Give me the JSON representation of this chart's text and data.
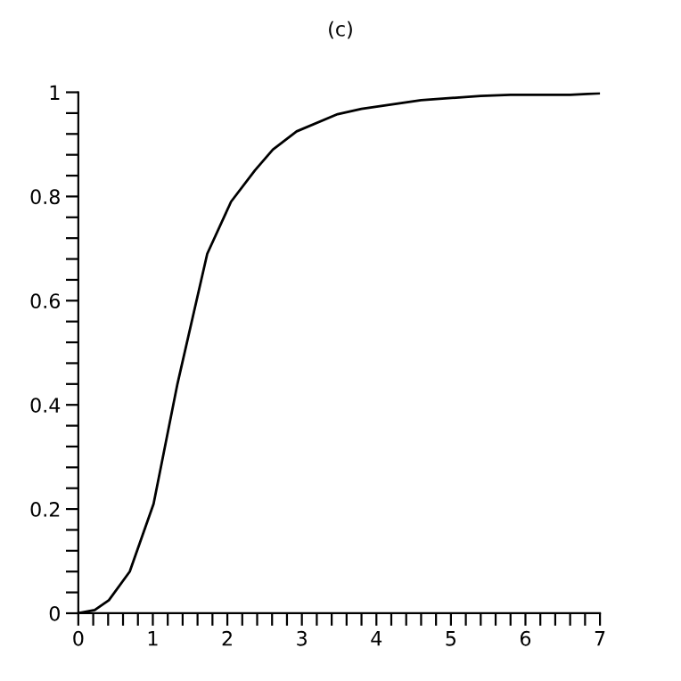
{
  "chart_data": {
    "type": "line",
    "title": "(c)",
    "x": [
      0,
      0.22,
      0.41,
      0.69,
      1.01,
      1.33,
      1.73,
      2.05,
      2.37,
      2.61,
      2.93,
      3.48,
      3.8,
      4.6,
      5.4,
      5.8,
      6.6,
      7
    ],
    "series": [
      {
        "color": "#000000",
        "values": [
          0,
          0.006,
          0.025,
          0.08,
          0.21,
          0.44,
          0.69,
          0.79,
          0.85,
          0.89,
          0.925,
          0.958,
          0.968,
          0.985,
          0.993,
          0.995,
          0.995,
          0.998
        ]
      }
    ],
    "xlim": [
      0,
      7
    ],
    "ylim": [
      0,
      1
    ],
    "xticks": [
      0,
      {
        "value": 0.2,
        "label": null
      },
      {
        "value": 0.4,
        "label": null
      },
      {
        "value": 0.6,
        "label": null
      },
      {
        "value": 0.8,
        "label": null
      },
      1,
      {
        "value": 1.2,
        "label": null
      },
      {
        "value": 1.4,
        "label": null
      },
      {
        "value": 1.6,
        "label": null
      },
      {
        "value": 1.8,
        "label": null
      },
      2,
      {
        "value": 2.2,
        "label": null
      },
      {
        "value": 2.4,
        "label": null
      },
      {
        "value": 2.6,
        "label": null
      },
      {
        "value": 2.8,
        "label": null
      },
      3,
      {
        "value": 3.2,
        "label": null
      },
      {
        "value": 3.4,
        "label": null
      },
      {
        "value": 3.6,
        "label": null
      },
      {
        "value": 3.8,
        "label": null
      },
      4,
      {
        "value": 4.2,
        "label": null
      },
      {
        "value": 4.4,
        "label": null
      },
      {
        "value": 4.6,
        "label": null
      },
      {
        "value": 4.8,
        "label": null
      },
      5,
      {
        "value": 5.2,
        "label": null
      },
      {
        "value": 5.4,
        "label": null
      },
      {
        "value": 5.6,
        "label": null
      },
      {
        "value": 5.8,
        "label": null
      },
      6,
      {
        "value": 6.2,
        "label": null
      },
      {
        "value": 6.4,
        "label": null
      },
      {
        "value": 6.6,
        "label": null
      },
      {
        "value": 6.8,
        "label": null
      },
      7
    ],
    "yticks": [
      0,
      {
        "value": 0.04,
        "label": null
      },
      {
        "value": 0.08,
        "label": null
      },
      {
        "value": 0.12,
        "label": null
      },
      {
        "value": 0.16,
        "label": null
      },
      0.2,
      {
        "value": 0.24,
        "label": null
      },
      {
        "value": 0.28,
        "label": null
      },
      {
        "value": 0.32,
        "label": null
      },
      {
        "value": 0.36,
        "label": null
      },
      0.4,
      {
        "value": 0.44,
        "label": null
      },
      {
        "value": 0.48,
        "label": null
      },
      {
        "value": 0.52,
        "label": null
      },
      {
        "value": 0.56,
        "label": null
      },
      0.6,
      {
        "value": 0.64,
        "label": null
      },
      {
        "value": 0.68,
        "label": null
      },
      {
        "value": 0.72,
        "label": null
      },
      {
        "value": 0.76,
        "label": null
      },
      0.8,
      {
        "value": 0.84,
        "label": null
      },
      {
        "value": 0.88,
        "label": null
      },
      {
        "value": 0.92,
        "label": null
      },
      {
        "value": 0.96,
        "label": null
      },
      1
    ],
    "grid": false,
    "legend": false,
    "marker": "none",
    "line_style": "solid"
  }
}
